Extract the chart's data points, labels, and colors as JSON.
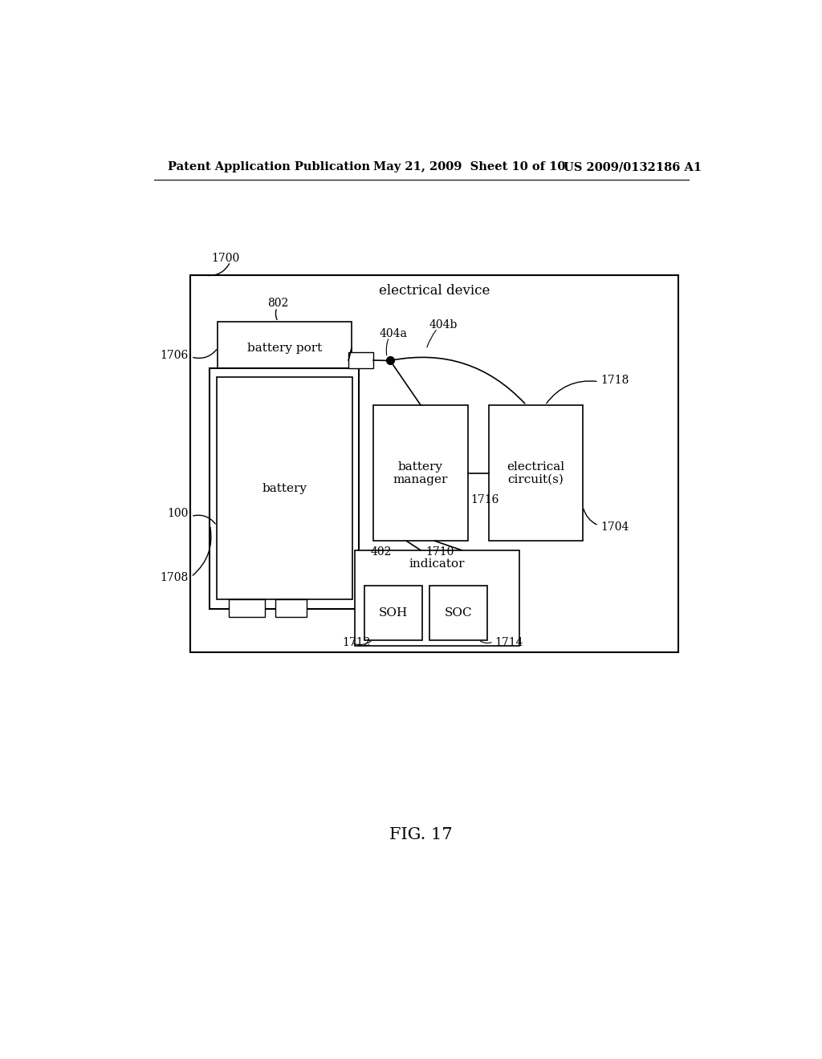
{
  "background_color": "#ffffff",
  "header_left": "Patent Application Publication",
  "header_mid": "May 21, 2009  Sheet 10 of 10",
  "header_right": "US 2009/0132186 A1",
  "fig_label": "FIG. 17",
  "outer_box_label": "1700",
  "electrical_device_label": "electrical device",
  "battery_port_label": "battery port",
  "battery_port_ref": "802",
  "battery_label": "battery",
  "battery_ref": "100",
  "wire_402_label": "402",
  "wire_404a_label": "404a",
  "wire_404b_label": "404b",
  "battery_manager_label": "battery\nmanager",
  "electrical_circuits_label": "electrical\ncircuit(s)",
  "electrical_circuits_ref": "1718",
  "ref_1704": "1704",
  "ref_1706": "1706",
  "ref_1708": "1708",
  "ref_1710": "1710",
  "ref_1716": "1716",
  "indicator_label": "indicator",
  "ref_1712": "1712",
  "ref_1714": "1714"
}
